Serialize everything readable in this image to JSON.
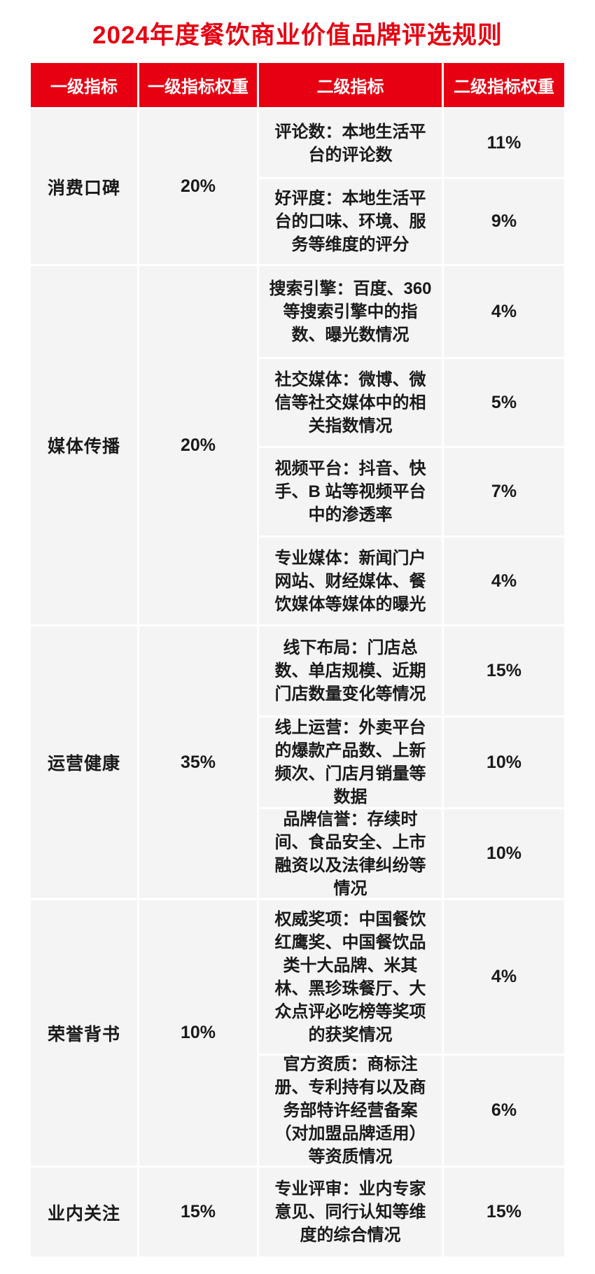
{
  "title": "2024年度餐饮商业价值品牌评选规则",
  "colors": {
    "accent_red": "#e60012",
    "cell_background": "#f4f4f4",
    "text": "#1a1a1a"
  },
  "table": {
    "headers": [
      "一级指标",
      "一级指标权重",
      "二级指标",
      "二级指标权重"
    ],
    "groups": [
      {
        "name": "消费口碑",
        "weight": "20%",
        "rows": [
          {
            "indicator": "评论数：本地生活平台的评论数",
            "weight": "11%"
          },
          {
            "indicator": "好评度：本地生活平台的口味、环境、服务等维度的评分",
            "weight": "9%"
          }
        ]
      },
      {
        "name": "媒体传播",
        "weight": "20%",
        "rows": [
          {
            "indicator": "搜索引擎：百度、360等搜索引擎中的指数、曝光数情况",
            "weight": "4%"
          },
          {
            "indicator": "社交媒体：微博、微信等社交媒体中的相关指数情况",
            "weight": "5%"
          },
          {
            "indicator": "视频平台：抖音、快手、B 站等视频平台中的渗透率",
            "weight": "7%"
          },
          {
            "indicator": "专业媒体：新闻门户网站、财经媒体、餐饮媒体等媒体的曝光",
            "weight": "4%"
          }
        ]
      },
      {
        "name": "运营健康",
        "weight": "35%",
        "rows": [
          {
            "indicator": "线下布局：门店总数、单店规模、近期门店数量变化等情况",
            "weight": "15%"
          },
          {
            "indicator": "线上运营：外卖平台的爆款产品数、上新频次、门店月销量等数据",
            "weight": "10%"
          },
          {
            "indicator": "品牌信誉：存续时间、食品安全、上市融资以及法律纠纷等情况",
            "weight": "10%"
          }
        ]
      },
      {
        "name": "荣誉背书",
        "weight": "10%",
        "rows": [
          {
            "indicator": "权威奖项：中国餐饮红鹰奖、中国餐饮品类十大品牌、米其林、黑珍珠餐厅、大众点评必吃榜等奖项的获奖情况",
            "weight": "4%"
          },
          {
            "indicator": "官方资质：商标注册、专利持有以及商务部特许经营备案（对加盟品牌适用）等资质情况",
            "weight": "6%"
          }
        ]
      },
      {
        "name": "业内关注",
        "weight": "15%",
        "rows": [
          {
            "indicator": "专业评审：业内专家意见、同行认知等维度的综合情况",
            "weight": "15%"
          }
        ]
      }
    ]
  }
}
